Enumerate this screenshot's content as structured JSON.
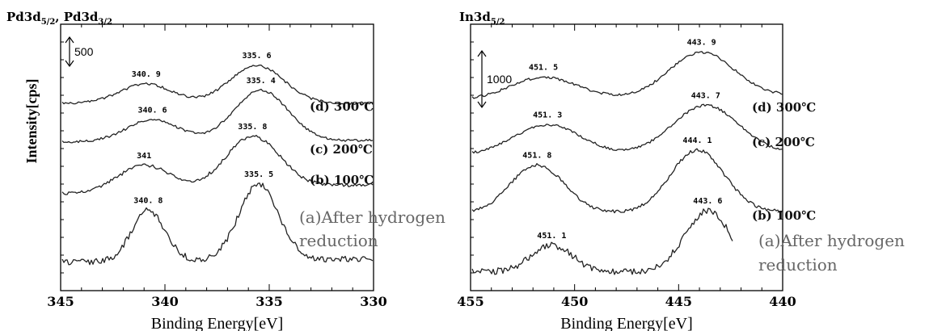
{
  "chart_data": [
    {
      "type": "line",
      "title": "Pd3d5/2, Pd3d3/2",
      "title_parts": [
        [
          "Pd3d",
          ""
        ],
        [
          "5/2",
          "sub"
        ],
        [
          ", Pd3d",
          ""
        ],
        [
          "3/2",
          "sub"
        ]
      ],
      "xlabel": "Binding Energy[eV]",
      "ylabel": "Intensity[cps]",
      "xlim": [
        345,
        330
      ],
      "x_ticks": [
        "345",
        "340",
        "335",
        "330"
      ],
      "scale_bar_label": "500",
      "series": [
        {
          "name": "(d) 300℃",
          "peaks": [
            {
              "x": 340.9,
              "label": "340. 9"
            },
            {
              "x": 335.6,
              "label": "335. 6"
            }
          ]
        },
        {
          "name": "(c) 200℃",
          "peaks": [
            {
              "x": 340.6,
              "label": "340. 6"
            },
            {
              "x": 335.4,
              "label": "335. 4"
            }
          ]
        },
        {
          "name": "(b) 100℃",
          "peaks": [
            {
              "x": 341,
              "label": "341"
            },
            {
              "x": 335.8,
              "label": "335. 8"
            }
          ]
        },
        {
          "name": "(a)After hydrogen reduction",
          "name_lines": [
            "(a)After hydrogen",
            "reduction"
          ],
          "peaks": [
            {
              "x": 340.8,
              "label": "340. 8"
            },
            {
              "x": 335.5,
              "label": "335. 5"
            }
          ]
        }
      ]
    },
    {
      "type": "line",
      "title": "In3d5/2",
      "title_parts": [
        [
          "In3d",
          ""
        ],
        [
          "5/2",
          "sub"
        ]
      ],
      "xlabel": "Binding Energy[eV]",
      "ylabel": "",
      "xlim": [
        455,
        440
      ],
      "x_ticks": [
        "455",
        "450",
        "445",
        "440"
      ],
      "scale_bar_label": "1000",
      "series": [
        {
          "name": "(d) 300℃",
          "peaks": [
            {
              "x": 451.5,
              "label": "451. 5"
            },
            {
              "x": 443.9,
              "label": "443. 9"
            }
          ]
        },
        {
          "name": "(c) 200℃",
          "peaks": [
            {
              "x": 451.3,
              "label": "451. 3"
            },
            {
              "x": 443.7,
              "label": "443. 7"
            }
          ]
        },
        {
          "name": "(b) 100℃",
          "peaks": [
            {
              "x": 451.8,
              "label": "451. 8"
            },
            {
              "x": 444.1,
              "label": "444. 1"
            }
          ]
        },
        {
          "name": "(a)After hydrogen reduction",
          "name_lines": [
            "(a)After hydrogen",
            "reduction"
          ],
          "peaks": [
            {
              "x": 451.1,
              "label": "451. 1"
            },
            {
              "x": 443.6,
              "label": "443. 6"
            }
          ]
        }
      ]
    }
  ]
}
